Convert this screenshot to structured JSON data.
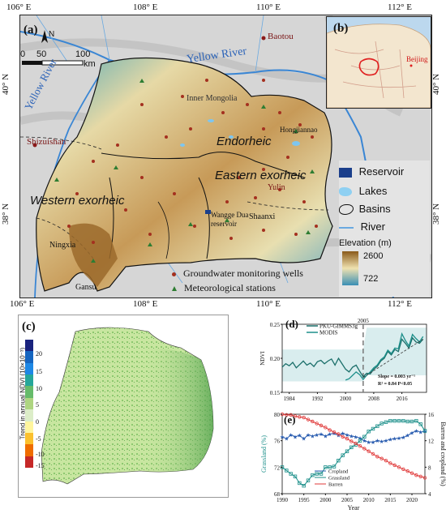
{
  "panel_a": {
    "label": "(a)",
    "north": "N",
    "scale": {
      "ticks": [
        "0",
        "50",
        "100"
      ],
      "unit": "km"
    },
    "top_ticks": [
      "106° E",
      "108° E",
      "110° E",
      "112° E"
    ],
    "bottom_ticks": [
      "106° E",
      "108° E",
      "110° E",
      "112° E"
    ],
    "left_ticks": [
      "40° N",
      "38° N"
    ],
    "right_ticks": [
      "40° N",
      "38° N"
    ],
    "places": {
      "baotou": "Baotou",
      "yellow_river_north": "Yellow River",
      "yellow_river_west": "Yellow River",
      "inner_mongolia": "Inner Mongolia",
      "shizuishan": "Shizuishan",
      "endorheic": "Endorheic",
      "hongjiannao": "Hongjiannao",
      "eastern_exorheic": "Eastern exorheic",
      "yulin": "Yulin",
      "western_exorheic": "Western exorheic",
      "wangge": "Wangge Dua",
      "reservoir": "reservoir",
      "shaanxi": "Shaanxi",
      "ningxia": "Ningxia",
      "gansu": "Gansu"
    },
    "legend": {
      "reservoir": "Reservoir",
      "lakes": "Lakes",
      "basins": "Basins",
      "river": "River",
      "elevation_title": "Elevation  (m)",
      "elev_high": "2600",
      "elev_low": "722",
      "wells": "Groundwater monitoring wells",
      "stations": "Meteorological stations"
    }
  },
  "panel_b": {
    "label": "(b)",
    "beijing": "Beijing"
  },
  "panel_c": {
    "label": "(c)",
    "colorbar_title": "Trend in annual NDVI (10×10⁻³)",
    "colorbar_ticks": [
      "20",
      "15",
      "10",
      "5",
      "0",
      "-5",
      "-10",
      "-15"
    ],
    "colors": [
      "#1a237e",
      "#1565c0",
      "#1e88e5",
      "#26a69a",
      "#66bb6a",
      "#aed581",
      "#dcedc8",
      "#fff59d",
      "#fbc02d",
      "#ef6c00",
      "#c62828"
    ]
  },
  "chart_data": [
    {
      "type": "line",
      "label": "(d)",
      "title": "",
      "xlabel": "",
      "ylabel": "NDVI",
      "xlim": [
        1982,
        2023
      ],
      "ylim": [
        0.15,
        0.25
      ],
      "x_ticks": [
        1984,
        1992,
        2000,
        2008,
        2016
      ],
      "y_ticks": [
        0.15,
        0.2,
        0.25
      ],
      "marker_year": "2005",
      "annotation_1": "Slope = 0.003 yr⁻¹",
      "annotation_2": "R² = 0.84  P<0.05",
      "series": [
        {
          "name": "PKU-GIMMS3g",
          "color": "#1b6f6a",
          "x": [
            1982,
            1983,
            1984,
            1985,
            1986,
            1987,
            1988,
            1989,
            1990,
            1991,
            1992,
            1993,
            1994,
            1995,
            1996,
            1997,
            1998,
            1999,
            2000,
            2001,
            2002,
            2003,
            2004,
            2005,
            2006,
            2007,
            2008,
            2009,
            2010,
            2011,
            2012,
            2013,
            2014,
            2015,
            2016,
            2017,
            2018,
            2019,
            2020,
            2021,
            2022
          ],
          "values": [
            0.187,
            0.192,
            0.189,
            0.194,
            0.186,
            0.191,
            0.196,
            0.19,
            0.193,
            0.188,
            0.195,
            0.197,
            0.192,
            0.196,
            0.199,
            0.19,
            0.2,
            0.192,
            0.184,
            0.18,
            0.187,
            0.19,
            0.181,
            0.173,
            0.178,
            0.177,
            0.184,
            0.188,
            0.196,
            0.2,
            0.21,
            0.205,
            0.213,
            0.21,
            0.228,
            0.222,
            0.215,
            0.23,
            0.224,
            0.222,
            0.228
          ]
        },
        {
          "name": "MODIS",
          "color": "#1c8f8a",
          "x": [
            2000,
            2001,
            2002,
            2003,
            2004,
            2005,
            2006,
            2007,
            2008,
            2009,
            2010,
            2011,
            2012,
            2013,
            2014,
            2015,
            2016,
            2017,
            2018,
            2019,
            2020,
            2021,
            2022
          ],
          "values": [
            0.168,
            0.17,
            0.175,
            0.18,
            0.176,
            0.169,
            0.175,
            0.18,
            0.186,
            0.19,
            0.198,
            0.202,
            0.212,
            0.207,
            0.215,
            0.214,
            0.236,
            0.226,
            0.218,
            0.235,
            0.229,
            0.224,
            0.232
          ]
        }
      ]
    },
    {
      "type": "line",
      "label": "(e)",
      "title": "",
      "xlabel": "Year",
      "ylabel": "Grassland (%)",
      "ylabel_right": "Barren and cropland (%)",
      "xlim": [
        1990,
        2023
      ],
      "ylim": [
        68,
        80
      ],
      "ylim_right": [
        4,
        16
      ],
      "x_ticks": [
        1990,
        1995,
        2000,
        2005,
        2010,
        2015,
        2020
      ],
      "y_ticks": [
        68,
        72,
        76,
        80
      ],
      "y_ticks_right": [
        4,
        8,
        12,
        16
      ],
      "series": [
        {
          "name": "Cropland",
          "axis": "right",
          "color": "#2a5db0",
          "marker": "star",
          "x": [
            1990,
            1991,
            1992,
            1993,
            1994,
            1995,
            1996,
            1997,
            1998,
            1999,
            2000,
            2001,
            2002,
            2003,
            2004,
            2005,
            2006,
            2007,
            2008,
            2009,
            2010,
            2011,
            2012,
            2013,
            2014,
            2015,
            2016,
            2017,
            2018,
            2019,
            2020,
            2021,
            2022,
            2023
          ],
          "values": [
            12.6,
            12.3,
            12.9,
            12.6,
            12.8,
            12.3,
            12.9,
            12.7,
            12.9,
            13.0,
            12.7,
            13.0,
            13.1,
            12.8,
            13.1,
            12.9,
            12.7,
            12.6,
            12.4,
            12.0,
            11.8,
            11.8,
            12.0,
            11.9,
            12.0,
            12.2,
            12.3,
            12.4,
            12.5,
            12.8,
            13.2,
            13.5,
            13.3,
            13.4
          ]
        },
        {
          "name": "Grassland",
          "axis": "left",
          "color": "#1c8f8a",
          "marker": "square",
          "x": [
            1990,
            1991,
            1992,
            1993,
            1994,
            1995,
            1996,
            1997,
            1998,
            1999,
            2000,
            2001,
            2002,
            2003,
            2004,
            2005,
            2006,
            2007,
            2008,
            2009,
            2010,
            2011,
            2012,
            2013,
            2014,
            2015,
            2016,
            2017,
            2018,
            2019,
            2020,
            2021,
            2022,
            2023
          ],
          "values": [
            72.0,
            71.5,
            71.0,
            70.6,
            69.6,
            69.2,
            70.0,
            70.8,
            71.0,
            71.0,
            72.0,
            72.0,
            72.1,
            73.0,
            73.8,
            74.4,
            75.0,
            75.4,
            76.0,
            76.6,
            77.4,
            77.8,
            78.2,
            78.6,
            78.8,
            79.0,
            79.0,
            79.0,
            79.0,
            78.9,
            78.9,
            79.0,
            78.5,
            77.5
          ]
        },
        {
          "name": "Barren",
          "axis": "right",
          "color": "#e03a3a",
          "marker": "circle",
          "x": [
            1990,
            1991,
            1992,
            1993,
            1994,
            1995,
            1996,
            1997,
            1998,
            1999,
            2000,
            2001,
            2002,
            2003,
            2004,
            2005,
            2006,
            2007,
            2008,
            2009,
            2010,
            2011,
            2012,
            2013,
            2014,
            2015,
            2016,
            2017,
            2018,
            2019,
            2020,
            2021,
            2022,
            2023
          ],
          "values": [
            16.0,
            15.9,
            15.9,
            15.7,
            15.6,
            15.5,
            15.2,
            14.9,
            14.6,
            14.3,
            14.0,
            13.6,
            13.3,
            13.0,
            12.6,
            12.3,
            11.9,
            11.6,
            11.2,
            10.8,
            10.4,
            10.0,
            9.6,
            9.3,
            9.0,
            8.6,
            8.3,
            8.0,
            7.7,
            7.4,
            7.1,
            6.8,
            6.6,
            6.4
          ]
        }
      ]
    }
  ]
}
